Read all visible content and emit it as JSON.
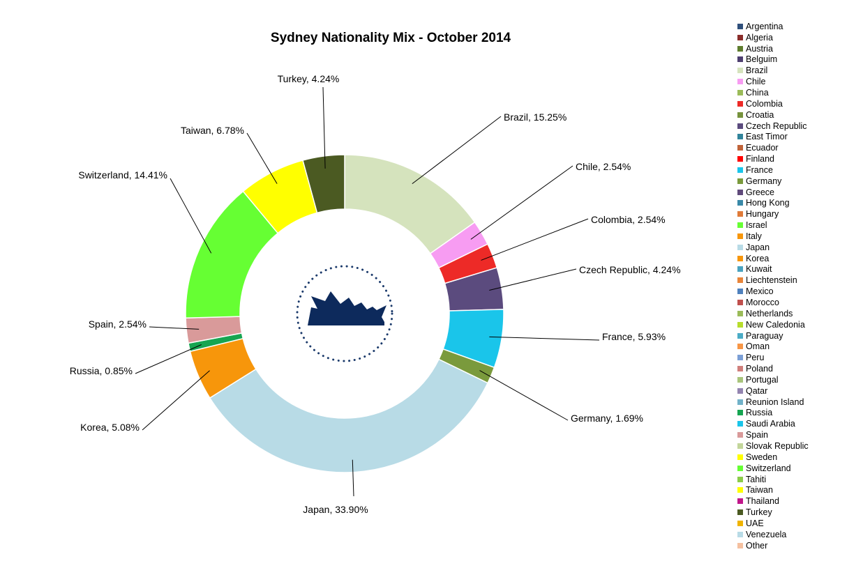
{
  "chart_data": {
    "type": "pie",
    "title": "Sydney Nationality Mix - October 2014",
    "donut": true,
    "legend_position": "right",
    "center_logo": "sydney-opera-house-logo",
    "slices": [
      {
        "label": "Brazil",
        "value": 15.25,
        "display": "Brazil, 15.25%",
        "color": "#d5e3bd"
      },
      {
        "label": "Chile",
        "value": 2.54,
        "display": "Chile, 2.54%",
        "color": "#f79cf2"
      },
      {
        "label": "Colombia",
        "value": 2.54,
        "display": "Colombia, 2.54%",
        "color": "#ed2a27"
      },
      {
        "label": "Czech Republic",
        "value": 4.24,
        "display": "Czech Republic, 4.24%",
        "color": "#5b4b7e"
      },
      {
        "label": "France",
        "value": 5.93,
        "display": "France, 5.93%",
        "color": "#1ac5ea"
      },
      {
        "label": "Germany",
        "value": 1.69,
        "display": "Germany, 1.69%",
        "color": "#7a9a3c"
      },
      {
        "label": "Japan",
        "value": 33.9,
        "display": "Japan, 33.90%",
        "color": "#b8dbe6"
      },
      {
        "label": "Korea",
        "value": 5.08,
        "display": "Korea, 5.08%",
        "color": "#f7960b"
      },
      {
        "label": "Russia",
        "value": 0.85,
        "display": "Russia, 0.85%",
        "color": "#16a551"
      },
      {
        "label": "Spain",
        "value": 2.54,
        "display": "Spain, 2.54%",
        "color": "#d99a9a"
      },
      {
        "label": "Switzerland",
        "value": 14.41,
        "display": "Switzerland, 14.41%",
        "color": "#66ff33"
      },
      {
        "label": "Taiwan",
        "value": 6.78,
        "display": "Taiwan, 6.78%",
        "color": "#ffff00"
      },
      {
        "label": "Turkey",
        "value": 4.24,
        "display": "Turkey, 4.24%",
        "color": "#4b5a22"
      }
    ],
    "legend": [
      {
        "name": "Argentina",
        "color": "#2f4f7b"
      },
      {
        "name": "Algeria",
        "color": "#8a2d2a"
      },
      {
        "name": "Austria",
        "color": "#5f7d2e"
      },
      {
        "name": "Belguim",
        "color": "#4e3f70"
      },
      {
        "name": "Brazil",
        "color": "#d5e3bd"
      },
      {
        "name": "Chile",
        "color": "#f79cf2"
      },
      {
        "name": "China",
        "color": "#9bbb59"
      },
      {
        "name": "Colombia",
        "color": "#ed2a27"
      },
      {
        "name": "Croatia",
        "color": "#76923c"
      },
      {
        "name": "Czech Republic",
        "color": "#5b4b7e"
      },
      {
        "name": "East Timor",
        "color": "#31849b"
      },
      {
        "name": "Ecuador",
        "color": "#c0643a"
      },
      {
        "name": "Finland",
        "color": "#ff0000"
      },
      {
        "name": "France",
        "color": "#1ac5ea"
      },
      {
        "name": "Germany",
        "color": "#7a9a3c"
      },
      {
        "name": "Greece",
        "color": "#604a7b"
      },
      {
        "name": "Hong Kong",
        "color": "#3989a8"
      },
      {
        "name": "Hungary",
        "color": "#e07b39"
      },
      {
        "name": "Israel",
        "color": "#66ff33"
      },
      {
        "name": "Italy",
        "color": "#f7960b"
      },
      {
        "name": "Japan",
        "color": "#b8dbe6"
      },
      {
        "name": "Korea",
        "color": "#f7960b"
      },
      {
        "name": "Kuwait",
        "color": "#4aa3c0"
      },
      {
        "name": "Liechtenstein",
        "color": "#e8853a"
      },
      {
        "name": "Mexico",
        "color": "#4f81bd"
      },
      {
        "name": "Morocco",
        "color": "#c0504d"
      },
      {
        "name": "Netherlands",
        "color": "#9bbb59"
      },
      {
        "name": "New Caledonia",
        "color": "#b7dd2c"
      },
      {
        "name": "Paraguay",
        "color": "#4bacc6"
      },
      {
        "name": "Oman",
        "color": "#f79646"
      },
      {
        "name": "Peru",
        "color": "#7b9fd6"
      },
      {
        "name": "Poland",
        "color": "#d07f7c"
      },
      {
        "name": "Portugal",
        "color": "#a9c57c"
      },
      {
        "name": "Qatar",
        "color": "#9384b0"
      },
      {
        "name": "Reunion Island",
        "color": "#71b2c9"
      },
      {
        "name": "Russia",
        "color": "#16a551"
      },
      {
        "name": "Saudi Arabia",
        "color": "#1ac5ea"
      },
      {
        "name": "Spain",
        "color": "#d99a9a"
      },
      {
        "name": "Slovak Republic",
        "color": "#c3d69b"
      },
      {
        "name": "Sweden",
        "color": "#ffff00"
      },
      {
        "name": "Switzerland",
        "color": "#66ff33"
      },
      {
        "name": "Tahiti",
        "color": "#8ccc4a"
      },
      {
        "name": "Taiwan",
        "color": "#ffff00"
      },
      {
        "name": "Thailand",
        "color": "#c0168a"
      },
      {
        "name": "Turkey",
        "color": "#4b5a22"
      },
      {
        "name": "UAE",
        "color": "#f0b400"
      },
      {
        "name": "Venezuela",
        "color": "#b8dbe6"
      },
      {
        "name": "Other",
        "color": "#f5c0a0"
      }
    ]
  }
}
